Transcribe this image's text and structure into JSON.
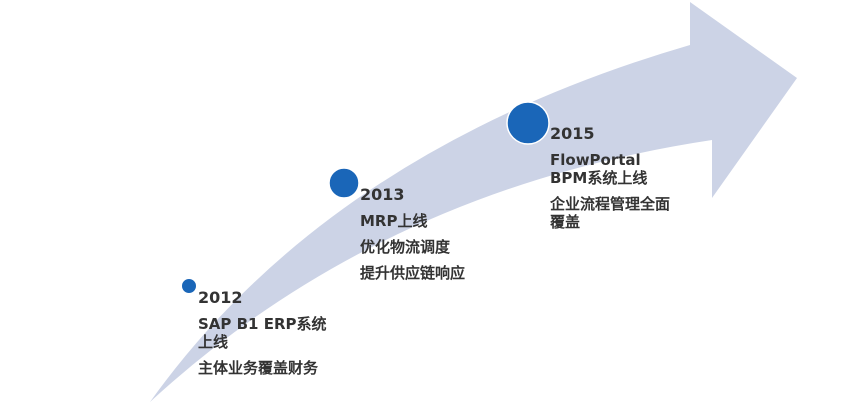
{
  "colors": {
    "arrow": "#ccd3e6",
    "milestone": "#1a66b8",
    "text": "#333333"
  },
  "milestones": [
    {
      "year": "2012",
      "title": "SAP B1 ERP系统上线",
      "desc": "主体业务覆盖财务"
    },
    {
      "year": "2013",
      "title": "MRP上线",
      "desc": "优化物流调度",
      "desc2": "提升供应链响应"
    },
    {
      "year": "2015",
      "title": "FlowPortal BPM系统上线",
      "desc": "企业流程管理全面覆盖"
    }
  ]
}
